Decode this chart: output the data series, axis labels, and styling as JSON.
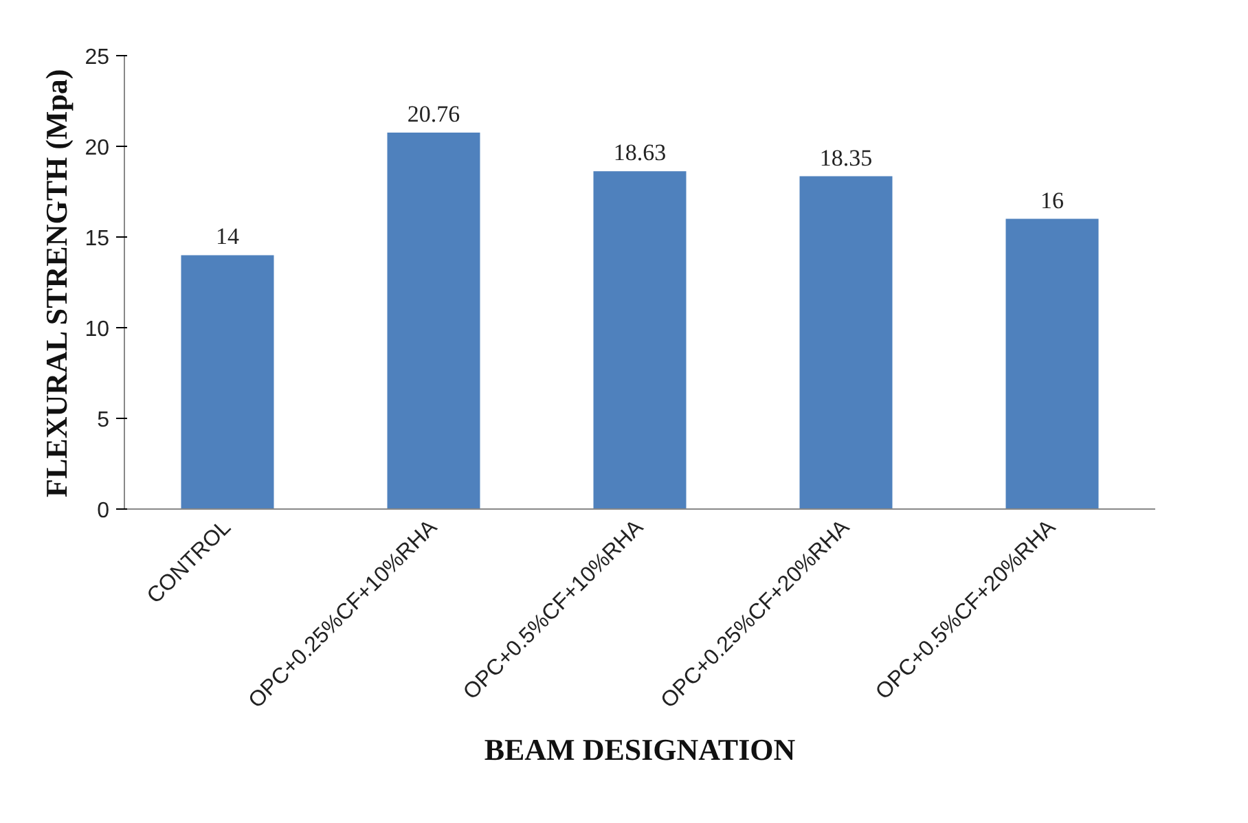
{
  "chart_data": {
    "type": "bar",
    "xlabel": "BEAM DESIGNATION",
    "ylabel": "FLEXURAL STRENGTH (Mpa)",
    "categories": [
      "CONTROL",
      "OPC+0.25%CF+10%RHA",
      "OPC+0.5%CF+10%RHA",
      "OPC+0.25%CF+20%RHA",
      "OPC+0.5%CF+20%RHA"
    ],
    "values": [
      14,
      20.76,
      18.63,
      18.35,
      16
    ],
    "color": "#4f81bd",
    "ylim": [
      0,
      25
    ],
    "yticks": [
      0,
      5,
      10,
      15,
      20,
      25
    ],
    "data_labels": true
  }
}
